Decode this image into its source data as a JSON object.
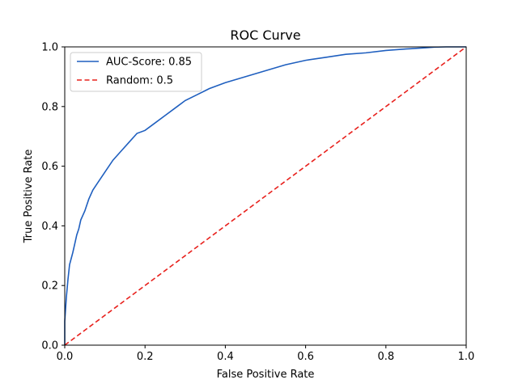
{
  "chart_data": {
    "type": "line",
    "title": "ROC Curve",
    "xlabel": "False Positive Rate",
    "ylabel": "True Positive Rate",
    "xlim": [
      0,
      1
    ],
    "ylim": [
      0,
      1
    ],
    "xticks": [
      "0.0",
      "0.2",
      "0.4",
      "0.6",
      "0.8",
      "1.0"
    ],
    "yticks": [
      "0.0",
      "0.2",
      "0.4",
      "0.6",
      "0.8",
      "1.0"
    ],
    "grid": false,
    "legend": "top-left",
    "series": [
      {
        "name": "AUC-Score: 0.85",
        "color": "#1f5fbf",
        "style": "solid",
        "x": [
          0.0,
          0.0,
          0.004,
          0.008,
          0.012,
          0.016,
          0.02,
          0.025,
          0.03,
          0.035,
          0.04,
          0.05,
          0.06,
          0.07,
          0.08,
          0.09,
          0.1,
          0.12,
          0.14,
          0.16,
          0.18,
          0.2,
          0.22,
          0.25,
          0.28,
          0.3,
          0.33,
          0.36,
          0.4,
          0.45,
          0.5,
          0.55,
          0.6,
          0.65,
          0.7,
          0.75,
          0.8,
          0.85,
          0.9,
          0.92,
          0.95,
          1.0
        ],
        "y": [
          0.0,
          0.08,
          0.16,
          0.22,
          0.27,
          0.29,
          0.31,
          0.34,
          0.37,
          0.39,
          0.42,
          0.45,
          0.49,
          0.52,
          0.54,
          0.56,
          0.58,
          0.62,
          0.65,
          0.68,
          0.71,
          0.72,
          0.74,
          0.77,
          0.8,
          0.82,
          0.84,
          0.86,
          0.88,
          0.9,
          0.92,
          0.94,
          0.955,
          0.965,
          0.975,
          0.98,
          0.988,
          0.993,
          0.997,
          0.999,
          1.0,
          1.0
        ]
      },
      {
        "name": "Random: 0.5",
        "color": "#e8201c",
        "style": "dashed",
        "x": [
          0,
          1
        ],
        "y": [
          0,
          1
        ]
      }
    ]
  }
}
